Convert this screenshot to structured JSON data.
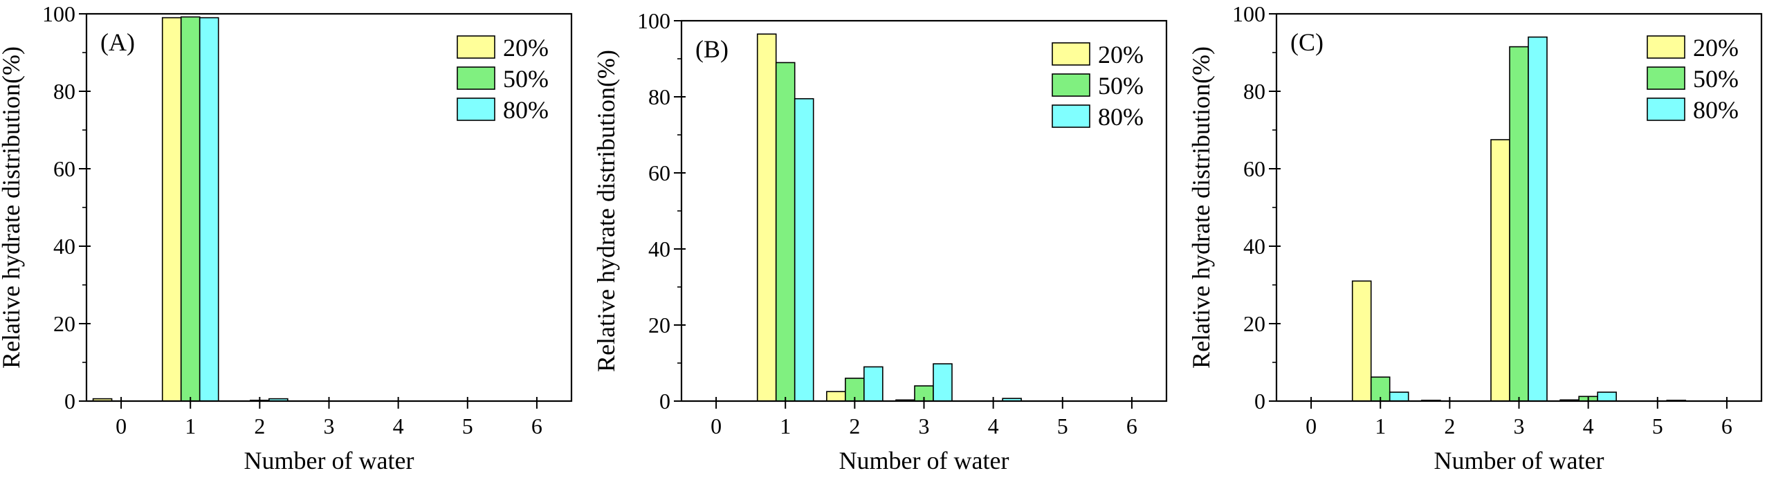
{
  "colors": {
    "s20": "#ffff99",
    "s50": "#80f080",
    "s80": "#80ffff",
    "stroke": "#000000"
  },
  "chart_data": [
    {
      "type": "bar",
      "panel_label": "(A)",
      "categories": [
        "0",
        "1",
        "2",
        "3",
        "4",
        "5",
        "6"
      ],
      "xlabel": "Number of water",
      "ylabel": "Relative hydrate distribution(%)",
      "ylim": [
        0,
        100
      ],
      "yticks": [
        "0",
        "20",
        "40",
        "60",
        "80",
        "100"
      ],
      "legend_position": "top-right",
      "series": [
        {
          "name": "20%",
          "values": [
            0.6,
            99.0,
            0.0,
            0.0,
            0.0,
            0.0,
            0.0
          ]
        },
        {
          "name": "50%",
          "values": [
            0.0,
            99.2,
            0.2,
            0.0,
            0.0,
            0.0,
            0.0
          ]
        },
        {
          "name": "80%",
          "values": [
            0.0,
            99.0,
            0.6,
            0.0,
            0.0,
            0.0,
            0.0
          ]
        }
      ]
    },
    {
      "type": "bar",
      "panel_label": "(B)",
      "categories": [
        "0",
        "1",
        "2",
        "3",
        "4",
        "5",
        "6"
      ],
      "xlabel": "Number of water",
      "ylabel": "Relative hydrate distribution(%)",
      "ylim": [
        0,
        100
      ],
      "yticks": [
        "0",
        "20",
        "40",
        "60",
        "80",
        "100"
      ],
      "legend_position": "top-right",
      "series": [
        {
          "name": "20%",
          "values": [
            0.0,
            96.5,
            2.5,
            0.3,
            0.0,
            0.0,
            0.0
          ]
        },
        {
          "name": "50%",
          "values": [
            0.0,
            89.0,
            6.0,
            4.0,
            0.0,
            0.0,
            0.0
          ]
        },
        {
          "name": "80%",
          "values": [
            0.0,
            79.5,
            9.0,
            9.8,
            0.7,
            0.0,
            0.0
          ]
        }
      ]
    },
    {
      "type": "bar",
      "panel_label": "(C)",
      "categories": [
        "0",
        "1",
        "2",
        "3",
        "4",
        "5",
        "6"
      ],
      "xlabel": "Number of water",
      "ylabel": "Relative hydrate distribution(%)",
      "ylim": [
        0,
        100
      ],
      "yticks": [
        "0",
        "20",
        "40",
        "60",
        "80",
        "100"
      ],
      "legend_position": "top-right",
      "series": [
        {
          "name": "20%",
          "values": [
            0.0,
            31.0,
            0.2,
            67.5,
            0.3,
            0.0,
            0.0
          ]
        },
        {
          "name": "50%",
          "values": [
            0.0,
            6.2,
            0.0,
            91.5,
            1.2,
            0.0,
            0.0
          ]
        },
        {
          "name": "80%",
          "values": [
            0.0,
            2.3,
            0.0,
            94.0,
            2.3,
            0.2,
            0.0
          ]
        }
      ]
    }
  ]
}
